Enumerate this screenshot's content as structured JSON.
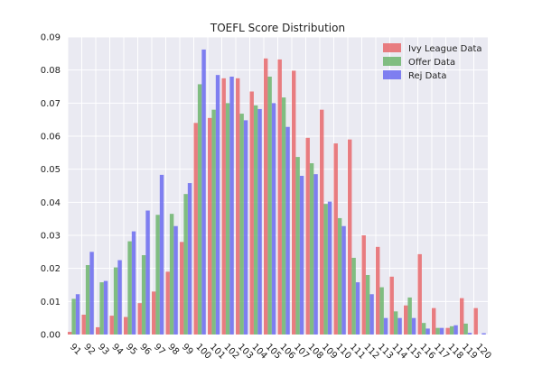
{
  "chart_data": {
    "type": "bar",
    "title": "TOEFL Score Distribution",
    "xlabel": "",
    "ylabel": "",
    "ylim": [
      0,
      0.09
    ],
    "yticks": [
      "0.00",
      "0.01",
      "0.02",
      "0.03",
      "0.04",
      "0.05",
      "0.06",
      "0.07",
      "0.08",
      "0.09"
    ],
    "grid": true,
    "legend_position": "top-right",
    "categories": [
      "91",
      "92",
      "93",
      "94",
      "95",
      "96",
      "97",
      "98",
      "99",
      "100",
      "101",
      "102",
      "103",
      "104",
      "105",
      "106",
      "107",
      "108",
      "109",
      "110",
      "111",
      "112",
      "113",
      "114",
      "115",
      "116",
      "117",
      "118",
      "119",
      "120"
    ],
    "series": [
      {
        "name": "Ivy League Data",
        "color": "#e8686c",
        "values": [
          0.0008,
          0.006,
          0.0022,
          0.0057,
          0.0053,
          0.0095,
          0.013,
          0.019,
          0.028,
          0.064,
          0.0655,
          0.0775,
          0.0775,
          0.0735,
          0.0835,
          0.0832,
          0.0798,
          0.0595,
          0.068,
          0.0578,
          0.059,
          0.03,
          0.0265,
          0.0175,
          0.0088,
          0.0243,
          0.008,
          0.002,
          0.011,
          0.008
        ]
      },
      {
        "name": "Offer Data",
        "color": "#6db56d",
        "values": [
          0.0108,
          0.021,
          0.0158,
          0.0203,
          0.0282,
          0.024,
          0.0362,
          0.0365,
          0.0425,
          0.0757,
          0.068,
          0.07,
          0.0668,
          0.0693,
          0.078,
          0.0717,
          0.0537,
          0.0518,
          0.0395,
          0.0352,
          0.0232,
          0.018,
          0.0143,
          0.007,
          0.0112,
          0.0035,
          0.002,
          0.0025,
          0.0033,
          0.0
        ]
      },
      {
        "name": "Rej Data",
        "color": "#6b6bf0",
        "values": [
          0.0122,
          0.025,
          0.0162,
          0.0225,
          0.0312,
          0.0375,
          0.0483,
          0.0328,
          0.0458,
          0.0862,
          0.0785,
          0.078,
          0.0648,
          0.0682,
          0.07,
          0.0628,
          0.048,
          0.0485,
          0.0402,
          0.0328,
          0.0158,
          0.0122,
          0.005,
          0.005,
          0.005,
          0.0018,
          0.002,
          0.0028,
          0.0005,
          0.0004
        ]
      }
    ]
  }
}
